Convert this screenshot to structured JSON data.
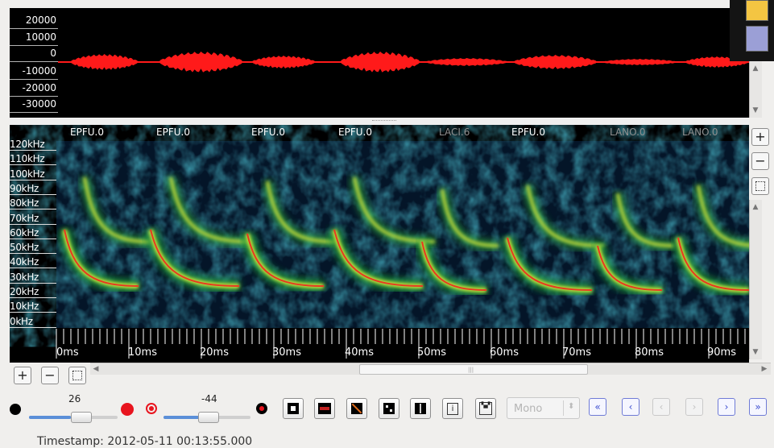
{
  "waveform": {
    "amplitude_labels": [
      "20000",
      "10000",
      "0",
      "-10000",
      "-20000",
      "-30000"
    ],
    "color": "#ff1a1a"
  },
  "spectrogram": {
    "annotations": [
      {
        "label": "EPFU.0",
        "dim": false
      },
      {
        "label": "EPFU.0",
        "dim": false
      },
      {
        "label": "EPFU.0",
        "dim": false
      },
      {
        "label": "EPFU.0",
        "dim": false
      },
      {
        "label": "LACI.6",
        "dim": true
      },
      {
        "label": "EPFU.0",
        "dim": false
      },
      {
        "label": "LANO.0",
        "dim": true
      },
      {
        "label": "LANO.0",
        "dim": true
      }
    ],
    "frequency_labels": [
      "120kHz",
      "110kHz",
      "100kHz",
      "90kHz",
      "80kHz",
      "70kHz",
      "60kHz",
      "50kHz",
      "40kHz",
      "30kHz",
      "20kHz",
      "10kHz",
      "0kHz"
    ],
    "time_labels": [
      "0ms",
      "10ms",
      "20ms",
      "30ms",
      "40ms",
      "50ms",
      "60ms",
      "70ms",
      "80ms",
      "90ms"
    ]
  },
  "controls": {
    "slider_left_value": "26",
    "slider_right_value": "-44",
    "channel_select": "Mono",
    "accent": "#3e4fd0",
    "record_color": "#e8141e"
  },
  "icons": {
    "zoom_in": "plus-icon",
    "zoom_out": "minus-icon",
    "fit": "fit-icon",
    "rewind": "double-chevron-left-icon",
    "prev": "chevron-left-icon",
    "next": "chevron-right-icon",
    "forward": "double-chevron-right-icon"
  },
  "status": {
    "timestamp": "Timestamp: 2012-05-11 00:13:55.000"
  },
  "swatches": {
    "colors": [
      "#f4c542",
      "#9b9fd6"
    ]
  }
}
